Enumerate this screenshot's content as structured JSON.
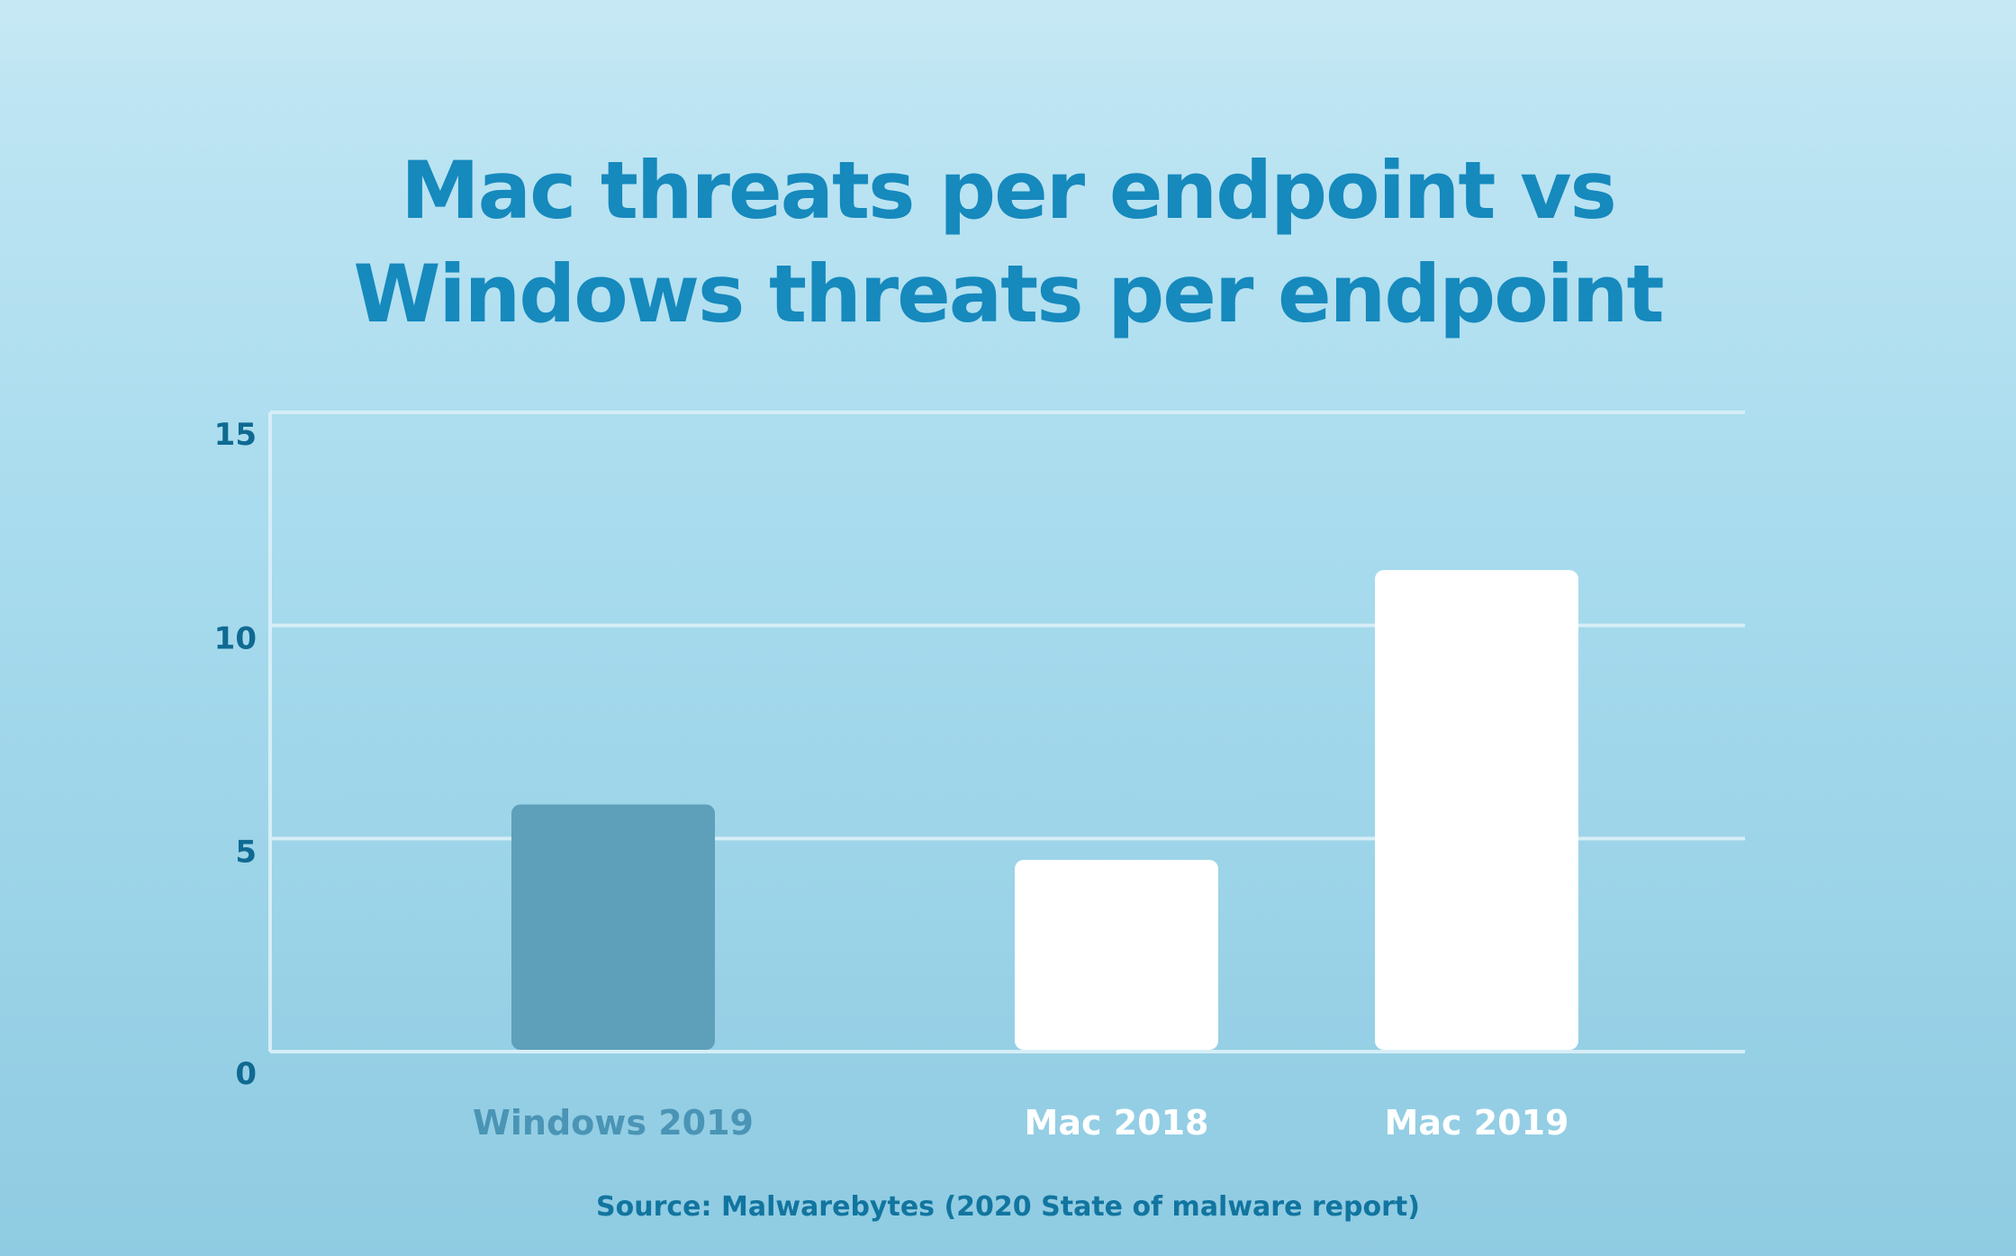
{
  "chart_data": {
    "type": "bar",
    "title": "Mac threats per endpoint vs Windows threats per endpoint",
    "title_lines": [
      "Mac threats per endpoint vs",
      "Windows threats per endpoint"
    ],
    "categories": [
      "Windows 2019",
      "Mac 2018",
      "Mac 2019"
    ],
    "values": [
      5.8,
      4.5,
      11.3
    ],
    "bar_colors": [
      "#5e9fb9",
      "#ffffff",
      "#ffffff"
    ],
    "label_colors": [
      "#4a94b5",
      "#ffffff",
      "#ffffff"
    ],
    "xlabel": "",
    "ylabel": "",
    "ylim": [
      0,
      15
    ],
    "yticks": [
      "0",
      "5",
      "10",
      "15"
    ],
    "grid": true,
    "source": "Source: Malwarebytes (2020 State of malware report)"
  }
}
